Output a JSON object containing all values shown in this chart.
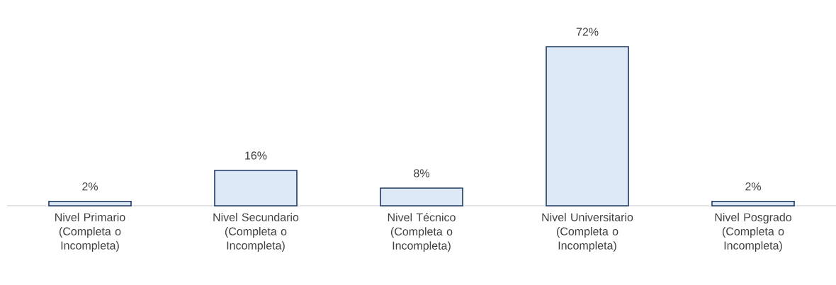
{
  "chart_data": {
    "type": "bar",
    "categories": [
      "Nivel Primario (Completa o Incompleta)",
      "Nivel Secundario (Completa o Incompleta)",
      "Nivel Técnico (Completa o Incompleta)",
      "Nivel Universitario (Completa o Incompleta)",
      "Nivel Posgrado (Completa o Incompleta)"
    ],
    "values": [
      2,
      16,
      8,
      72,
      2
    ],
    "value_labels": [
      "2%",
      "16%",
      "8%",
      "72%",
      "2%"
    ],
    "color": "#dde9f6"
  }
}
